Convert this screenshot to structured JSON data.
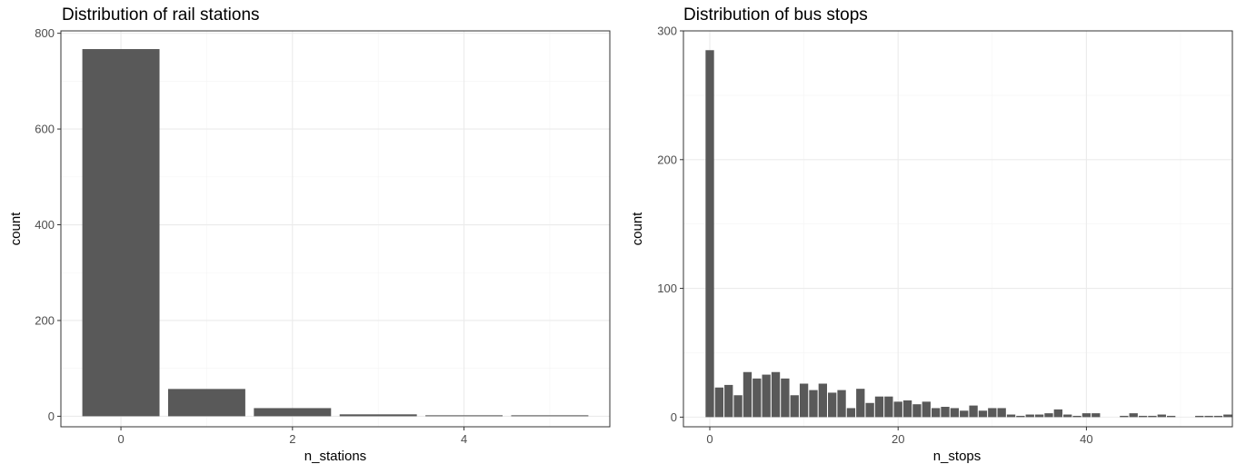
{
  "chart_data": [
    {
      "type": "bar",
      "title": "Distribution of rail stations",
      "xlabel": "n_stations",
      "ylabel": "count",
      "x": [
        0,
        1,
        2,
        3,
        4,
        5
      ],
      "values": [
        767,
        57,
        17,
        4,
        2,
        2
      ],
      "xlim": [
        -0.7,
        5.7
      ],
      "ylim": [
        -22,
        805
      ],
      "xticks": [
        0,
        2,
        4
      ],
      "xtick_labels": [
        "0",
        "2",
        "4"
      ],
      "yticks": [
        0,
        200,
        400,
        600,
        800
      ],
      "ytick_labels": [
        "0",
        "200",
        "400",
        "600",
        "800"
      ],
      "grid": true,
      "bar_color": "#595959"
    },
    {
      "type": "bar",
      "title": "Distribution of bus stops",
      "xlabel": "n_stops",
      "ylabel": "count",
      "x": [
        0,
        1,
        2,
        3,
        4,
        5,
        6,
        7,
        8,
        9,
        10,
        11,
        12,
        13,
        14,
        15,
        16,
        17,
        18,
        19,
        20,
        21,
        22,
        23,
        24,
        25,
        26,
        27,
        28,
        29,
        30,
        31,
        32,
        33,
        34,
        35,
        36,
        37,
        38,
        39,
        40,
        41,
        42,
        43,
        44,
        45,
        46,
        47,
        48,
        49,
        50,
        51,
        52,
        53,
        54,
        55
      ],
      "values": [
        285,
        23,
        25,
        17,
        35,
        30,
        33,
        35,
        30,
        17,
        26,
        21,
        26,
        19,
        21,
        7,
        22,
        11,
        16,
        16,
        12,
        13,
        10,
        12,
        7,
        8,
        7,
        5,
        9,
        5,
        7,
        7,
        2,
        1,
        2,
        2,
        3,
        6,
        2,
        1,
        3,
        3,
        0,
        0,
        1,
        3,
        1,
        1,
        2,
        1,
        0,
        0,
        1,
        1,
        1,
        2
      ],
      "xlim": [
        -2.8,
        55.5
      ],
      "ylim": [
        -7.5,
        300
      ],
      "xticks": [
        0,
        20,
        40
      ],
      "xtick_labels": [
        "0",
        "20",
        "40"
      ],
      "yticks": [
        0,
        100,
        200,
        300
      ],
      "ytick_labels": [
        "0",
        "100",
        "200",
        "300"
      ],
      "grid": true,
      "bar_color": "#595959"
    }
  ]
}
